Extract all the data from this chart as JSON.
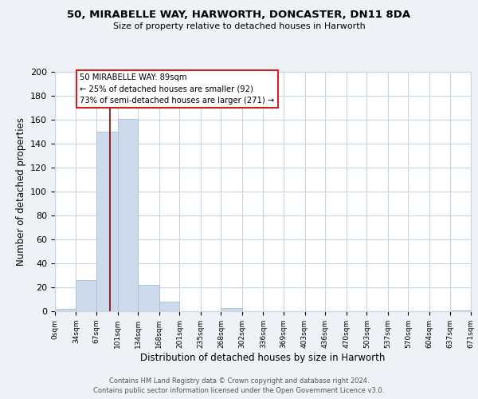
{
  "title_line1": "50, MIRABELLE WAY, HARWORTH, DONCASTER, DN11 8DA",
  "title_line2": "Size of property relative to detached houses in Harworth",
  "xlabel": "Distribution of detached houses by size in Harworth",
  "ylabel": "Number of detached properties",
  "bin_edges": [
    0,
    34,
    67,
    101,
    134,
    168,
    201,
    235,
    268,
    302,
    336,
    369,
    403,
    436,
    470,
    503,
    537,
    570,
    604,
    637,
    671
  ],
  "bin_labels": [
    "0sqm",
    "34sqm",
    "67sqm",
    "101sqm",
    "134sqm",
    "168sqm",
    "201sqm",
    "235sqm",
    "268sqm",
    "302sqm",
    "336sqm",
    "369sqm",
    "403sqm",
    "436sqm",
    "470sqm",
    "503sqm",
    "537sqm",
    "570sqm",
    "604sqm",
    "637sqm",
    "671sqm"
  ],
  "counts": [
    2,
    26,
    150,
    161,
    22,
    8,
    0,
    0,
    3,
    0,
    0,
    0,
    0,
    0,
    0,
    0,
    0,
    0,
    0,
    1
  ],
  "bar_color": "#ccdaeb",
  "property_line_x": 89,
  "ylim": [
    0,
    200
  ],
  "yticks": [
    0,
    20,
    40,
    60,
    80,
    100,
    120,
    140,
    160,
    180,
    200
  ],
  "annotation_text_line1": "50 MIRABELLE WAY: 89sqm",
  "annotation_text_line2": "← 25% of detached houses are smaller (92)",
  "annotation_text_line3": "73% of semi-detached houses are larger (271) →",
  "footer_line1": "Contains HM Land Registry data © Crown copyright and database right 2024.",
  "footer_line2": "Contains public sector information licensed under the Open Government Licence v3.0.",
  "background_color": "#eef2f7",
  "plot_bg_color": "#ffffff",
  "grid_color": "#c8d4e0",
  "red_line_color": "#8b0000",
  "bar_edge_color": "#a8c0d8"
}
